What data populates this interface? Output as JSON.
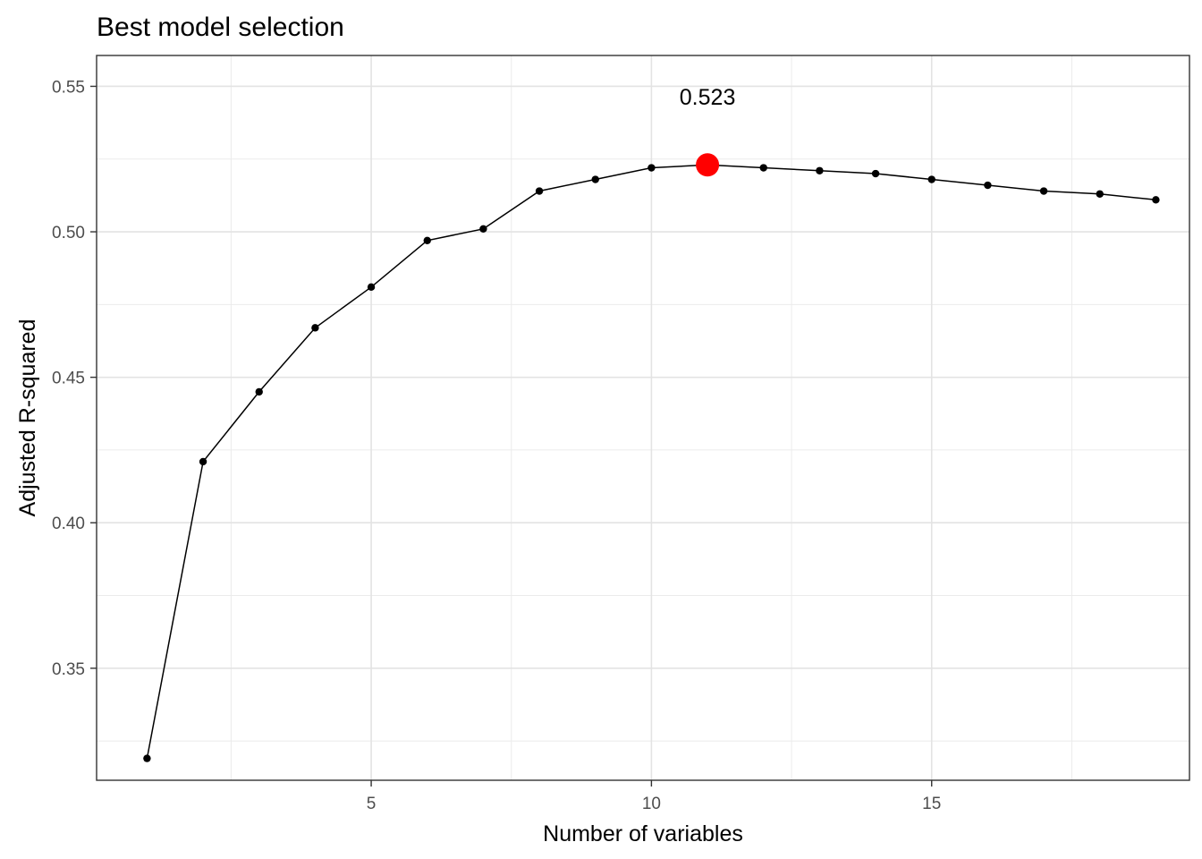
{
  "chart_data": {
    "type": "line",
    "title": "Best model selection",
    "xlabel": "Number of variables",
    "ylabel": "Adjusted R-squared",
    "xlim": [
      0.1,
      19.6
    ],
    "ylim": [
      0.3115,
      0.5606
    ],
    "x_ticks": [
      5,
      10,
      15
    ],
    "y_ticks": [
      0.35,
      0.4,
      0.45,
      0.5,
      0.55
    ],
    "x_tick_labels": [
      "5",
      "10",
      "15"
    ],
    "y_tick_labels": [
      "0.35",
      "0.40",
      "0.45",
      "0.50",
      "0.55"
    ],
    "grid": true,
    "series": [
      {
        "x": [
          1,
          2,
          3,
          4,
          5,
          6,
          7,
          8,
          9,
          10,
          11,
          12,
          13,
          14,
          15,
          16,
          17,
          18,
          19
        ],
        "values": [
          0.319,
          0.421,
          0.445,
          0.467,
          0.481,
          0.497,
          0.501,
          0.514,
          0.518,
          0.522,
          0.523,
          0.522,
          0.521,
          0.52,
          0.518,
          0.516,
          0.514,
          0.513,
          0.511
        ],
        "color": "#000000"
      }
    ],
    "highlight": {
      "x": 11,
      "y": 0.523,
      "color": "#ff0000"
    },
    "annotation": {
      "text": "0.523",
      "x": 11,
      "y": 0.5465
    }
  }
}
